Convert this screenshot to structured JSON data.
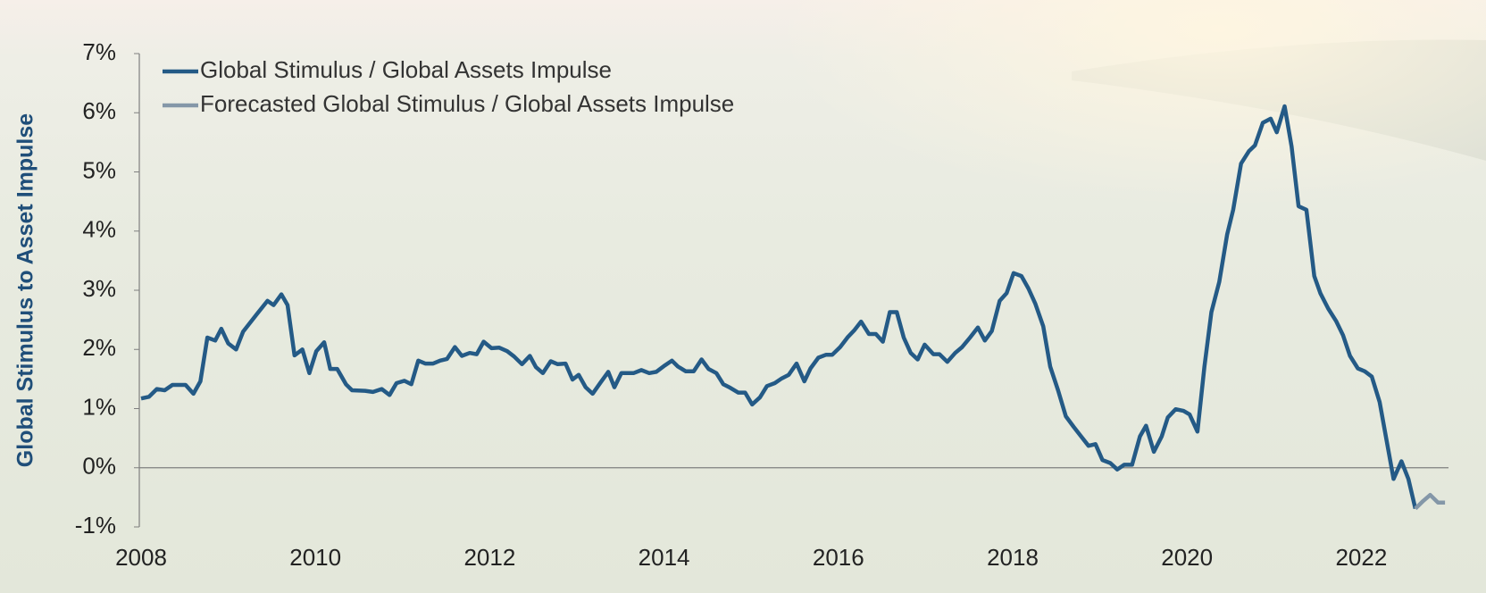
{
  "chart_data": {
    "type": "line",
    "ylabel": "Global Stimulus to Asset Impulse",
    "xlim": [
      2008,
      2023
    ],
    "xticks": [
      2008,
      2010,
      2012,
      2014,
      2016,
      2018,
      2020,
      2022
    ],
    "ylim": [
      -1,
      7
    ],
    "yticks": [
      {
        "value": -1,
        "label": "-1%"
      },
      {
        "value": 0,
        "label": "0%"
      },
      {
        "value": 1,
        "label": "1%"
      },
      {
        "value": 2,
        "label": "2%"
      },
      {
        "value": 3,
        "label": "3%"
      },
      {
        "value": 4,
        "label": "4%"
      },
      {
        "value": 5,
        "label": "5%"
      },
      {
        "value": 6,
        "label": "6%"
      },
      {
        "value": 7,
        "label": "7%"
      }
    ],
    "legend": "upper left",
    "series": [
      {
        "name": "Global Stimulus / Global Assets Impulse",
        "color": "#245a86",
        "x": [
          2008.0,
          2008.09,
          2008.18,
          2008.27,
          2008.36,
          2008.51,
          2008.6,
          2008.68,
          2008.76,
          2008.85,
          2008.92,
          2009.0,
          2009.09,
          2009.17,
          2009.33,
          2009.45,
          2009.52,
          2009.61,
          2009.68,
          2009.76,
          2009.85,
          2009.93,
          2010.01,
          2010.1,
          2010.17,
          2010.25,
          2010.35,
          2010.42,
          2010.57,
          2010.66,
          2010.76,
          2010.85,
          2010.93,
          2011.02,
          2011.1,
          2011.18,
          2011.26,
          2011.35,
          2011.43,
          2011.51,
          2011.6,
          2011.68,
          2011.77,
          2011.85,
          2011.93,
          2012.02,
          2012.11,
          2012.2,
          2012.28,
          2012.37,
          2012.46,
          2012.53,
          2012.61,
          2012.7,
          2012.78,
          2012.87,
          2012.95,
          2013.02,
          2013.1,
          2013.18,
          2013.27,
          2013.36,
          2013.43,
          2013.51,
          2013.65,
          2013.74,
          2013.83,
          2013.91,
          2014.01,
          2014.09,
          2014.16,
          2014.25,
          2014.34,
          2014.43,
          2014.51,
          2014.6,
          2014.68,
          2014.76,
          2014.85,
          2014.93,
          2015.01,
          2015.1,
          2015.18,
          2015.27,
          2015.35,
          2015.43,
          2015.52,
          2015.61,
          2015.68,
          2015.77,
          2015.86,
          2015.93,
          2016.02,
          2016.11,
          2016.18,
          2016.26,
          2016.35,
          2016.43,
          2016.51,
          2016.59,
          2016.67,
          2016.75,
          2016.83,
          2016.91,
          2016.99,
          2017.09,
          2017.16,
          2017.25,
          2017.34,
          2017.42,
          2017.51,
          2017.6,
          2017.68,
          2017.76,
          2017.85,
          2017.93,
          2018.01,
          2018.1,
          2018.18,
          2018.26,
          2018.35,
          2018.43,
          2018.52,
          2018.61,
          2018.7,
          2018.78,
          2018.87,
          2018.95,
          2019.03,
          2019.12,
          2019.2,
          2019.28,
          2019.37,
          2019.46,
          2019.53,
          2019.62,
          2019.71,
          2019.78,
          2019.87,
          2019.96,
          2020.03,
          2020.12,
          2020.2,
          2020.28,
          2020.37,
          2020.46,
          2020.53,
          2020.62,
          2020.71,
          2020.78,
          2020.87,
          2020.96,
          2021.03,
          2021.12,
          2021.2,
          2021.28,
          2021.37,
          2021.46,
          2021.53,
          2021.62,
          2021.71,
          2021.79,
          2021.87,
          2021.96,
          2022.04,
          2022.12,
          2022.21,
          2022.29,
          2022.37,
          2022.46,
          2022.54,
          2022.62
        ],
        "values": [
          1.17,
          1.2,
          1.33,
          1.31,
          1.4,
          1.4,
          1.25,
          1.46,
          2.2,
          2.15,
          2.35,
          2.1,
          2.0,
          2.3,
          2.6,
          2.82,
          2.75,
          2.93,
          2.75,
          1.9,
          2.0,
          1.6,
          1.97,
          2.12,
          1.67,
          1.67,
          1.41,
          1.31,
          1.3,
          1.28,
          1.33,
          1.23,
          1.43,
          1.47,
          1.41,
          1.81,
          1.76,
          1.76,
          1.81,
          1.84,
          2.04,
          1.89,
          1.94,
          1.92,
          2.13,
          2.02,
          2.03,
          1.97,
          1.88,
          1.75,
          1.89,
          1.7,
          1.6,
          1.8,
          1.75,
          1.76,
          1.49,
          1.57,
          1.36,
          1.25,
          1.44,
          1.62,
          1.36,
          1.6,
          1.6,
          1.65,
          1.6,
          1.62,
          1.73,
          1.81,
          1.71,
          1.63,
          1.63,
          1.83,
          1.67,
          1.6,
          1.41,
          1.35,
          1.27,
          1.27,
          1.07,
          1.19,
          1.38,
          1.43,
          1.51,
          1.57,
          1.76,
          1.46,
          1.68,
          1.86,
          1.91,
          1.91,
          2.04,
          2.21,
          2.32,
          2.47,
          2.26,
          2.26,
          2.13,
          2.63,
          2.63,
          2.2,
          1.94,
          1.83,
          2.08,
          1.92,
          1.92,
          1.79,
          1.94,
          2.04,
          2.2,
          2.37,
          2.15,
          2.31,
          2.82,
          2.95,
          3.29,
          3.24,
          3.03,
          2.77,
          2.39,
          1.71,
          1.31,
          0.87,
          0.69,
          0.54,
          0.37,
          0.4,
          0.13,
          0.08,
          -0.03,
          0.05,
          0.05,
          0.53,
          0.71,
          0.27,
          0.53,
          0.85,
          0.99,
          0.96,
          0.9,
          0.61,
          1.71,
          2.63,
          3.14,
          3.94,
          4.36,
          5.14,
          5.35,
          5.45,
          5.83,
          5.9,
          5.67,
          6.11,
          5.43,
          4.42,
          4.36,
          3.24,
          2.95,
          2.69,
          2.48,
          2.24,
          1.89,
          1.68,
          1.63,
          1.54,
          1.11,
          0.46,
          -0.19,
          0.11,
          -0.19,
          -0.69
        ]
      },
      {
        "name": "Forecasted Global Stimulus / Global Assets Impulse",
        "color": "#8497a8",
        "x": [
          2022.62,
          2022.71,
          2022.79,
          2022.88,
          2022.96
        ],
        "values": [
          -0.69,
          -0.56,
          -0.46,
          -0.59,
          -0.59
        ]
      }
    ]
  }
}
